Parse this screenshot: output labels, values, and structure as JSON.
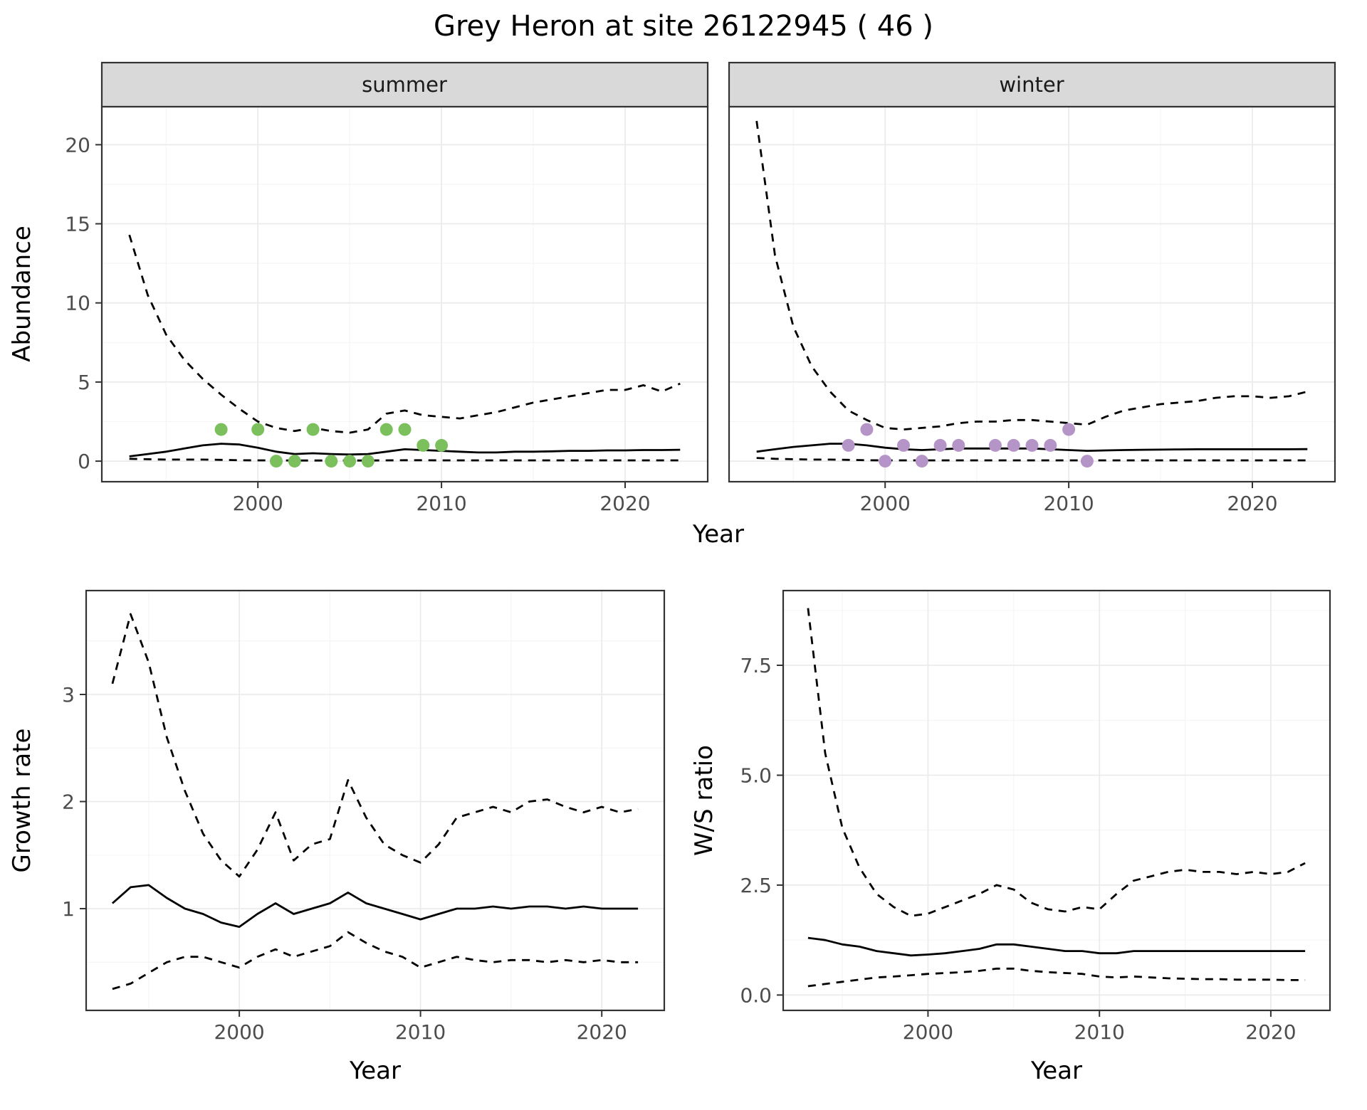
{
  "title": "Grey Heron at site 26122945 ( 46 )",
  "axis_labels": {
    "x_top": "Year",
    "x_growth": "Year",
    "x_ws": "Year",
    "y_top": "Abundance",
    "y_growth": "Growth rate",
    "y_ws": "W/S ratio"
  },
  "facets": {
    "summer_label": "summer",
    "winter_label": "winter"
  },
  "colors": {
    "summer_points": "#7CC05E",
    "winter_points": "#B594C7",
    "line": "#000000",
    "grid_major": "#EBEBEB",
    "grid_minor": "#F5F5F5",
    "panel_border": "#333333",
    "strip_fill": "#D9D9D9",
    "tick_color": "#333333",
    "tick_text": "#4D4D4D"
  },
  "chart_data": [
    {
      "id": "abundance_summer",
      "type": "line",
      "facet_label": "summer",
      "xlabel": "Year",
      "ylabel": "Abundance",
      "xlim": [
        1991.5,
        2024.5
      ],
      "ylim": [
        -1.3,
        22.4
      ],
      "xticks": [
        2000,
        2010,
        2020
      ],
      "xtick_labels": [
        "2000",
        "2010",
        "2020"
      ],
      "yticks": [
        0,
        5,
        10,
        15,
        20
      ],
      "ytick_labels": [
        "0",
        "5",
        "10",
        "15",
        "20"
      ],
      "minor_xticks": [
        1995,
        2005,
        2015
      ],
      "minor_yticks": [
        2.5,
        7.5,
        12.5,
        17.5
      ],
      "grid": true,
      "legend": "none",
      "x": [
        1993,
        1994,
        1995,
        1996,
        1997,
        1998,
        1999,
        2000,
        2001,
        2002,
        2003,
        2004,
        2005,
        2006,
        2007,
        2008,
        2009,
        2010,
        2011,
        2012,
        2013,
        2014,
        2015,
        2016,
        2017,
        2018,
        2019,
        2020,
        2021,
        2022,
        2023
      ],
      "series": [
        {
          "name": "upper_95ci",
          "linetype": "dashed",
          "values": [
            14.3,
            10.5,
            8.0,
            6.4,
            5.2,
            4.2,
            3.3,
            2.5,
            2.1,
            1.9,
            2.1,
            1.9,
            1.8,
            2.0,
            3.0,
            3.2,
            2.9,
            2.8,
            2.7,
            2.9,
            3.1,
            3.4,
            3.7,
            3.9,
            4.1,
            4.3,
            4.5,
            4.5,
            4.8,
            4.4,
            4.9
          ]
        },
        {
          "name": "estimate",
          "linetype": "solid",
          "values": [
            0.3,
            0.45,
            0.6,
            0.8,
            1.0,
            1.1,
            1.05,
            0.85,
            0.6,
            0.45,
            0.5,
            0.45,
            0.42,
            0.45,
            0.6,
            0.75,
            0.7,
            0.65,
            0.6,
            0.55,
            0.55,
            0.6,
            0.6,
            0.62,
            0.65,
            0.65,
            0.68,
            0.68,
            0.7,
            0.7,
            0.72
          ]
        },
        {
          "name": "lower_95ci",
          "linetype": "dashed",
          "values": [
            0.15,
            0.12,
            0.1,
            0.1,
            0.1,
            0.08,
            0.06,
            0.05,
            0.05,
            0.04,
            0.04,
            0.04,
            0.04,
            0.04,
            0.05,
            0.06,
            0.06,
            0.05,
            0.05,
            0.05,
            0.05,
            0.05,
            0.05,
            0.05,
            0.05,
            0.05,
            0.05,
            0.05,
            0.05,
            0.05,
            0.05
          ]
        }
      ],
      "points": {
        "name": "observed_count",
        "color_key": "summer_points",
        "x": [
          1998,
          2000,
          2001,
          2002,
          2003,
          2004,
          2005,
          2006,
          2007,
          2008,
          2009,
          2010
        ],
        "y": [
          2,
          2,
          0,
          0,
          2,
          0,
          0,
          0,
          2,
          2,
          1,
          1
        ]
      }
    },
    {
      "id": "abundance_winter",
      "type": "line",
      "facet_label": "winter",
      "xlabel": "Year",
      "ylabel": "Abundance",
      "xlim": [
        1991.5,
        2024.5
      ],
      "ylim": [
        -1.3,
        22.4
      ],
      "xticks": [
        2000,
        2010,
        2020
      ],
      "xtick_labels": [
        "2000",
        "2010",
        "2020"
      ],
      "yticks": [
        0,
        5,
        10,
        15,
        20
      ],
      "ytick_labels": [
        "0",
        "5",
        "10",
        "15",
        "20"
      ],
      "minor_xticks": [
        1995,
        2005,
        2015
      ],
      "minor_yticks": [
        2.5,
        7.5,
        12.5,
        17.5
      ],
      "grid": true,
      "legend": "none",
      "x": [
        1993,
        1994,
        1995,
        1996,
        1997,
        1998,
        1999,
        2000,
        2001,
        2002,
        2003,
        2004,
        2005,
        2006,
        2007,
        2008,
        2009,
        2010,
        2011,
        2012,
        2013,
        2014,
        2015,
        2016,
        2017,
        2018,
        2019,
        2020,
        2021,
        2022,
        2023
      ],
      "series": [
        {
          "name": "upper_95ci",
          "linetype": "dashed",
          "values": [
            21.5,
            13.0,
            8.5,
            6.0,
            4.4,
            3.2,
            2.6,
            2.1,
            2.0,
            2.1,
            2.2,
            2.4,
            2.5,
            2.5,
            2.6,
            2.6,
            2.5,
            2.4,
            2.3,
            2.8,
            3.2,
            3.4,
            3.6,
            3.7,
            3.8,
            4.0,
            4.1,
            4.1,
            4.0,
            4.1,
            4.4
          ]
        },
        {
          "name": "estimate",
          "linetype": "solid",
          "values": [
            0.6,
            0.75,
            0.9,
            1.0,
            1.1,
            1.1,
            1.0,
            0.85,
            0.75,
            0.7,
            0.75,
            0.8,
            0.8,
            0.8,
            0.8,
            0.8,
            0.75,
            0.7,
            0.65,
            0.68,
            0.7,
            0.72,
            0.73,
            0.74,
            0.75,
            0.75,
            0.75,
            0.75,
            0.75,
            0.75,
            0.76
          ]
        },
        {
          "name": "lower_95ci",
          "linetype": "dashed",
          "values": [
            0.2,
            0.15,
            0.12,
            0.1,
            0.1,
            0.08,
            0.06,
            0.05,
            0.05,
            0.05,
            0.05,
            0.05,
            0.05,
            0.05,
            0.05,
            0.05,
            0.05,
            0.05,
            0.05,
            0.05,
            0.05,
            0.05,
            0.05,
            0.05,
            0.05,
            0.05,
            0.05,
            0.05,
            0.05,
            0.05,
            0.05
          ]
        }
      ],
      "points": {
        "name": "observed_count",
        "color_key": "winter_points",
        "x": [
          1998,
          1999,
          2000,
          2001,
          2002,
          2003,
          2004,
          2006,
          2007,
          2008,
          2009,
          2010,
          2011
        ],
        "y": [
          1,
          2,
          0,
          1,
          0,
          1,
          1,
          1,
          1,
          1,
          1,
          2,
          0
        ]
      }
    },
    {
      "id": "growth_rate",
      "type": "line",
      "xlabel": "Year",
      "ylabel": "Growth rate",
      "xlim": [
        1991.55,
        2023.45
      ],
      "ylim": [
        0.05,
        3.97
      ],
      "xticks": [
        2000,
        2010,
        2020
      ],
      "xtick_labels": [
        "2000",
        "2010",
        "2020"
      ],
      "yticks": [
        1,
        2,
        3
      ],
      "ytick_labels": [
        "1",
        "2",
        "3"
      ],
      "minor_xticks": [
        1995,
        2005,
        2015
      ],
      "minor_yticks": [
        0.5,
        1.5,
        2.5,
        3.5
      ],
      "grid": true,
      "legend": "none",
      "x": [
        1993,
        1994,
        1995,
        1996,
        1997,
        1998,
        1999,
        2000,
        2001,
        2002,
        2003,
        2004,
        2005,
        2006,
        2007,
        2008,
        2009,
        2010,
        2011,
        2012,
        2013,
        2014,
        2015,
        2016,
        2017,
        2018,
        2019,
        2020,
        2021,
        2022
      ],
      "series": [
        {
          "name": "upper_95ci",
          "linetype": "dashed",
          "values": [
            3.1,
            3.75,
            3.3,
            2.6,
            2.1,
            1.7,
            1.45,
            1.3,
            1.55,
            1.9,
            1.45,
            1.6,
            1.65,
            2.2,
            1.85,
            1.6,
            1.5,
            1.43,
            1.6,
            1.85,
            1.9,
            1.95,
            1.9,
            2.0,
            2.02,
            1.95,
            1.9,
            1.95,
            1.9,
            1.93
          ]
        },
        {
          "name": "estimate",
          "linetype": "solid",
          "values": [
            1.05,
            1.2,
            1.22,
            1.1,
            1.0,
            0.95,
            0.87,
            0.83,
            0.95,
            1.05,
            0.95,
            1.0,
            1.05,
            1.15,
            1.05,
            1.0,
            0.95,
            0.9,
            0.95,
            1.0,
            1.0,
            1.02,
            1.0,
            1.02,
            1.02,
            1.0,
            1.02,
            1.0,
            1.0,
            1.0
          ]
        },
        {
          "name": "lower_95ci",
          "linetype": "dashed",
          "values": [
            0.25,
            0.3,
            0.4,
            0.5,
            0.55,
            0.55,
            0.5,
            0.45,
            0.55,
            0.62,
            0.55,
            0.6,
            0.65,
            0.78,
            0.68,
            0.6,
            0.55,
            0.45,
            0.5,
            0.55,
            0.52,
            0.5,
            0.52,
            0.52,
            0.5,
            0.52,
            0.5,
            0.52,
            0.5,
            0.5
          ]
        }
      ]
    },
    {
      "id": "ws_ratio",
      "type": "line",
      "xlabel": "Year",
      "ylabel": "W/S ratio",
      "xlim": [
        1991.55,
        2023.45
      ],
      "ylim": [
        -0.35,
        9.2
      ],
      "xticks": [
        2000,
        2010,
        2020
      ],
      "xtick_labels": [
        "2000",
        "2010",
        "2020"
      ],
      "yticks": [
        0,
        2.5,
        5,
        7.5
      ],
      "ytick_labels": [
        "0.0",
        "2.5",
        "5.0",
        "7.5"
      ],
      "minor_xticks": [
        1995,
        2005,
        2015
      ],
      "minor_yticks": [
        1.25,
        3.75,
        6.25,
        8.75
      ],
      "grid": true,
      "legend": "none",
      "x": [
        1993,
        1994,
        1995,
        1996,
        1997,
        1998,
        1999,
        2000,
        2001,
        2002,
        2003,
        2004,
        2005,
        2006,
        2007,
        2008,
        2009,
        2010,
        2011,
        2012,
        2013,
        2014,
        2015,
        2016,
        2017,
        2018,
        2019,
        2020,
        2021,
        2022
      ],
      "series": [
        {
          "name": "upper_95ci",
          "linetype": "dashed",
          "values": [
            8.8,
            5.5,
            3.8,
            2.9,
            2.3,
            2.0,
            1.8,
            1.85,
            2.0,
            2.15,
            2.3,
            2.5,
            2.4,
            2.1,
            1.95,
            1.9,
            2.0,
            1.95,
            2.3,
            2.6,
            2.7,
            2.8,
            2.85,
            2.8,
            2.8,
            2.75,
            2.8,
            2.75,
            2.8,
            3.0
          ]
        },
        {
          "name": "estimate",
          "linetype": "solid",
          "values": [
            1.3,
            1.25,
            1.15,
            1.1,
            1.0,
            0.95,
            0.9,
            0.92,
            0.95,
            1.0,
            1.05,
            1.15,
            1.15,
            1.1,
            1.05,
            1.0,
            1.0,
            0.95,
            0.95,
            1.0,
            1.0,
            1.0,
            1.0,
            1.0,
            1.0,
            1.0,
            1.0,
            1.0,
            1.0,
            1.0
          ]
        },
        {
          "name": "lower_95ci",
          "linetype": "dashed",
          "values": [
            0.2,
            0.25,
            0.3,
            0.35,
            0.4,
            0.42,
            0.45,
            0.48,
            0.5,
            0.52,
            0.55,
            0.6,
            0.6,
            0.55,
            0.52,
            0.5,
            0.48,
            0.42,
            0.4,
            0.42,
            0.4,
            0.38,
            0.37,
            0.36,
            0.36,
            0.35,
            0.35,
            0.35,
            0.34,
            0.34
          ]
        }
      ]
    }
  ]
}
